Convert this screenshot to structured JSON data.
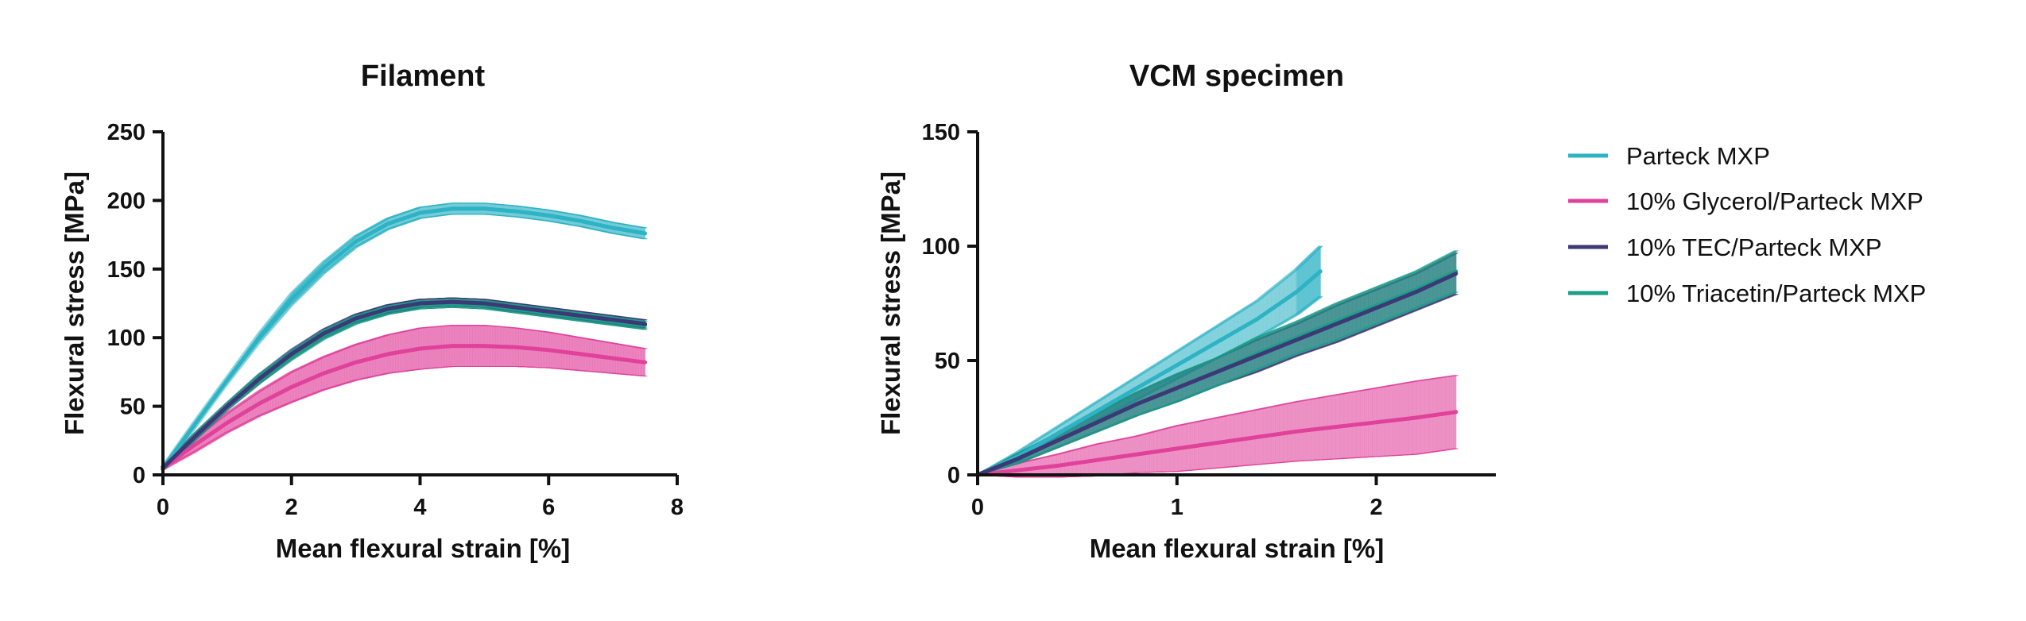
{
  "chart_data": [
    {
      "type": "line",
      "title": "Filament",
      "xlabel": "Mean flexural strain [%]",
      "ylabel": "Flexural stress [MPa]",
      "xlim": [
        0,
        8
      ],
      "ylim": [
        0,
        250
      ],
      "xticks": [
        "0",
        "2",
        "4",
        "6",
        "8"
      ],
      "yticks": [
        "0",
        "50",
        "100",
        "150",
        "200",
        "250"
      ],
      "grid": false,
      "series": [
        {
          "name": "Parteck MXP",
          "x": [
            0,
            0.5,
            1,
            1.5,
            2,
            2.5,
            3,
            3.5,
            4,
            4.5,
            5,
            5.5,
            6,
            6.5,
            7,
            7.5
          ],
          "y": [
            5,
            37,
            69,
            100,
            128,
            151,
            170,
            183,
            191,
            194,
            194,
            192,
            189,
            185,
            180,
            176
          ],
          "err": [
            1,
            2,
            2,
            3,
            4,
            4,
            4,
            4,
            4,
            4,
            4,
            4,
            4,
            4,
            4,
            4
          ]
        },
        {
          "name": "10% Glycerol/Parteck MXP",
          "x": [
            0,
            0.5,
            1,
            1.5,
            2,
            2.5,
            3,
            3.5,
            4,
            4.5,
            5,
            5.5,
            6,
            6.5,
            7,
            7.5
          ],
          "y": [
            5,
            22,
            38,
            52,
            64,
            74,
            82,
            88,
            92,
            94,
            94,
            93,
            91,
            88,
            85,
            82
          ],
          "err": [
            1,
            5,
            7,
            9,
            11,
            12,
            13,
            14,
            15,
            15,
            15,
            14,
            13,
            12,
            11,
            10
          ]
        },
        {
          "name": "10% TEC/Parteck MXP",
          "x": [
            0,
            0.5,
            1,
            1.5,
            2,
            2.5,
            3,
            3.5,
            4,
            4.5,
            5,
            5.5,
            6,
            6.5,
            7,
            7.5
          ],
          "y": [
            5,
            28,
            50,
            70,
            88,
            103,
            114,
            121,
            125,
            126,
            125,
            122,
            119,
            116,
            113,
            110
          ],
          "err": [
            1,
            2,
            2,
            3,
            3,
            3,
            3,
            3,
            3,
            3,
            3,
            3,
            3,
            3,
            3,
            3
          ]
        },
        {
          "name": "10% Triacetin/Parteck MXP",
          "x": [
            0,
            0.5,
            1,
            1.5,
            2,
            2.5,
            3,
            3.5,
            4,
            4.5,
            5,
            5.5,
            6,
            6.5,
            7,
            7.5
          ],
          "y": [
            5,
            28,
            50,
            70,
            87,
            102,
            113,
            120,
            124,
            125,
            124,
            121,
            118,
            115,
            112,
            109
          ],
          "err": [
            1,
            2,
            2,
            3,
            3,
            3,
            3,
            3,
            3,
            3,
            3,
            3,
            3,
            3,
            3,
            3
          ]
        }
      ]
    },
    {
      "type": "line",
      "title": "VCM specimen",
      "xlabel": "Mean flexural strain [%]",
      "ylabel": "Flexural stress [MPa]",
      "xlim": [
        0,
        2.6
      ],
      "ylim": [
        0,
        150
      ],
      "xticks": [
        "0",
        "1",
        "2"
      ],
      "yticks": [
        "0",
        "50",
        "100",
        "150"
      ],
      "grid": false,
      "series": [
        {
          "name": "Parteck MXP",
          "x": [
            0,
            0.2,
            0.4,
            0.6,
            0.8,
            1.0,
            1.2,
            1.4,
            1.6,
            1.72
          ],
          "y": [
            0,
            8,
            18,
            28,
            38,
            48,
            58,
            68,
            80,
            89
          ],
          "err": [
            0,
            2,
            3,
            4,
            5,
            6,
            7,
            8,
            10,
            11
          ]
        },
        {
          "name": "10% Glycerol/Parteck MXP",
          "x": [
            0,
            0.2,
            0.4,
            0.6,
            0.8,
            1.0,
            1.2,
            1.4,
            1.6,
            1.8,
            2.0,
            2.2,
            2.4
          ],
          "y": [
            0,
            2,
            4,
            6.5,
            9,
            11.5,
            14,
            16.5,
            19,
            21,
            23,
            25,
            27.5
          ],
          "err": [
            0,
            3,
            5,
            7,
            8,
            10,
            11,
            12,
            13,
            14,
            15,
            16,
            16
          ]
        },
        {
          "name": "10% TEC/Parteck MXP",
          "x": [
            0,
            0.2,
            0.4,
            0.6,
            0.8,
            1.0,
            1.2,
            1.4,
            1.6,
            1.8,
            2.0,
            2.2,
            2.4
          ],
          "y": [
            0,
            7,
            15,
            23,
            31,
            38,
            45,
            52,
            59,
            66,
            73,
            80,
            88
          ],
          "err": [
            0,
            2,
            3,
            4,
            5,
            6,
            6,
            7,
            7,
            8,
            8,
            8,
            9
          ]
        },
        {
          "name": "10% Triacetin/Parteck MXP",
          "x": [
            0,
            0.2,
            0.4,
            0.6,
            0.8,
            1.0,
            1.2,
            1.4,
            1.6,
            1.8,
            2.0,
            2.2,
            2.4
          ],
          "y": [
            0,
            7,
            15,
            23,
            31,
            38,
            45,
            53,
            60,
            67,
            74,
            81,
            89
          ],
          "err": [
            0,
            2,
            3,
            4,
            5,
            6,
            6,
            7,
            7,
            8,
            8,
            8,
            9
          ]
        }
      ]
    }
  ],
  "legend": {
    "position": "right",
    "items": [
      {
        "label": "Parteck MXP",
        "color": "#2db3c4"
      },
      {
        "label": "10% Glycerol/Parteck MXP",
        "color": "#e0419a"
      },
      {
        "label": "10% TEC/Parteck MXP",
        "color": "#3d3876"
      },
      {
        "label": "10% Triacetin/Parteck MXP",
        "color": "#1c9f86"
      }
    ]
  },
  "colors": [
    "#2db3c4",
    "#e0419a",
    "#3d3876",
    "#1c9f86"
  ]
}
